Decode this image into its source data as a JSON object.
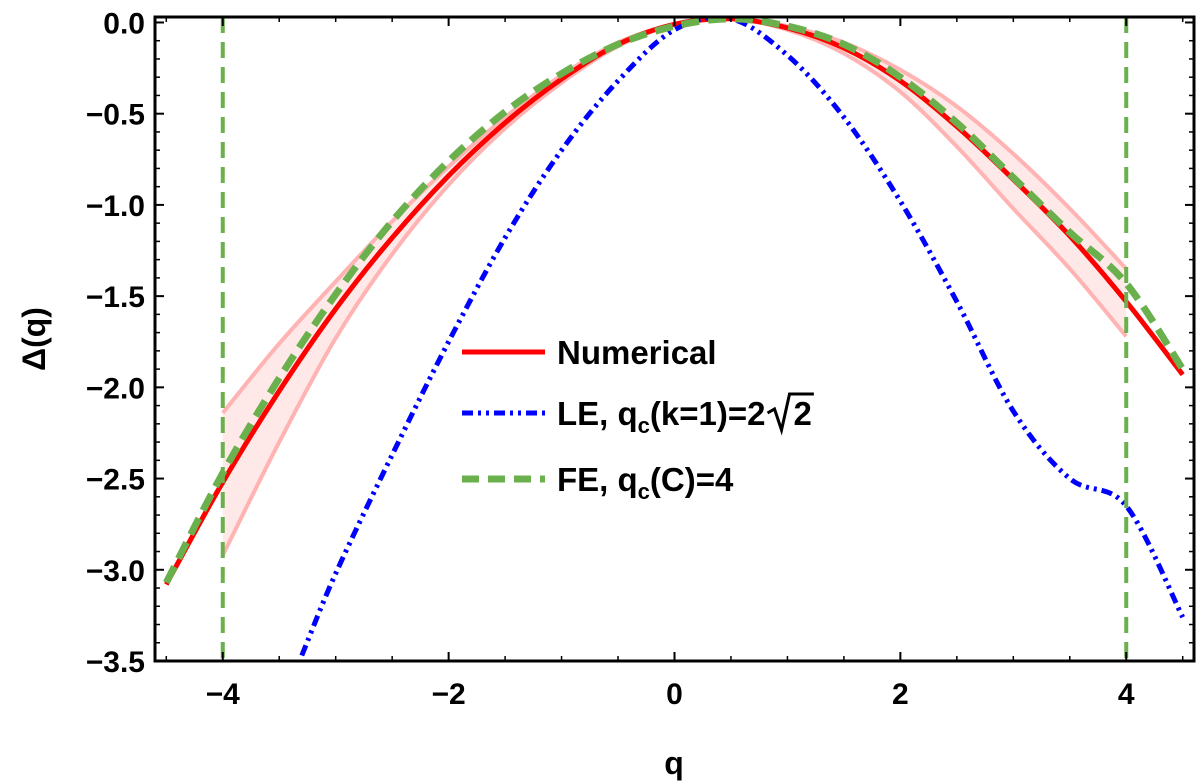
{
  "chart_data": {
    "type": "line",
    "title": "",
    "xlabel": "q",
    "ylabel": "Δ(q)",
    "xlim": [
      -4.6,
      4.6
    ],
    "ylim": [
      -3.5,
      0.03
    ],
    "x_ticks": [
      -4,
      -2,
      0,
      2,
      4
    ],
    "x_tick_labels": [
      "−4",
      "−2",
      "0",
      "2",
      "4"
    ],
    "y_ticks": [
      0.0,
      -0.5,
      -1.0,
      -1.5,
      -2.0,
      -2.5,
      -3.0,
      -3.5
    ],
    "y_tick_labels": [
      "0.0",
      "−0.5",
      "−1.0",
      "−1.5",
      "−2.0",
      "−2.5",
      "−3.0",
      "−3.5"
    ],
    "grid": false,
    "legend_position": "center",
    "vertical_lines": [
      {
        "x": -4,
        "color": "#6ab04c",
        "style": "dashed"
      },
      {
        "x": 4,
        "color": "#6ab04c",
        "style": "dashed"
      }
    ],
    "series": [
      {
        "name": "Numerical",
        "legend_label": "Numerical",
        "color": "#ff0000",
        "style": "solid",
        "x": [
          -4.5,
          -4.0,
          -3.5,
          -3.0,
          -2.5,
          -2.0,
          -1.5,
          -1.0,
          -0.5,
          0.0,
          0.5,
          1.0,
          1.5,
          2.0,
          2.5,
          3.0,
          3.5,
          4.0,
          4.5
        ],
        "y": [
          -3.08,
          -2.52,
          -2.02,
          -1.57,
          -1.18,
          -0.84,
          -0.55,
          -0.31,
          -0.12,
          -0.01,
          0.02,
          -0.03,
          -0.14,
          -0.32,
          -0.57,
          -0.86,
          -1.17,
          -1.53,
          -1.93
        ]
      },
      {
        "name": "LE",
        "legend_label": "LE, q",
        "legend_subscript": "c",
        "legend_suffix": "(k=1)=2",
        "legend_sqrt": "2",
        "color": "#0000ff",
        "style": "dash-dot-dot",
        "x": [
          -3.3,
          -3.0,
          -2.5,
          -2.0,
          -1.5,
          -1.0,
          -0.5,
          0.0,
          0.5,
          1.0,
          1.5,
          2.0,
          2.5,
          3.0,
          3.5,
          4.0,
          4.5
        ],
        "y": [
          -3.47,
          -3.02,
          -2.37,
          -1.75,
          -1.18,
          -0.7,
          -0.32,
          -0.04,
          0.02,
          -0.18,
          -0.52,
          -0.98,
          -1.53,
          -2.13,
          -2.5,
          -2.65,
          -3.26
        ]
      },
      {
        "name": "FE",
        "legend_label": "FE, q",
        "legend_subscript": "c",
        "legend_suffix": "(C)=4",
        "color": "#6ab04c",
        "style": "dashed",
        "x": [
          -4.5,
          -4.0,
          -3.5,
          -3.0,
          -2.5,
          -2.0,
          -1.5,
          -1.0,
          -0.5,
          0.0,
          0.5,
          1.0,
          1.5,
          2.0,
          2.5,
          3.0,
          3.5,
          4.0,
          4.5
        ],
        "y": [
          -3.07,
          -2.47,
          -1.95,
          -1.49,
          -1.09,
          -0.76,
          -0.49,
          -0.28,
          -0.12,
          -0.02,
          0.02,
          -0.02,
          -0.12,
          -0.3,
          -0.55,
          -0.85,
          -1.15,
          -1.43,
          -1.9
        ]
      }
    ],
    "uncertainty_band": {
      "series": "Numerical",
      "color": "#ffb3b3",
      "x": [
        -4.0,
        -3.5,
        -3.0,
        -2.5,
        -2.0,
        -1.5,
        -1.0,
        -0.5,
        0.0,
        0.5,
        1.0,
        1.5,
        2.0,
        2.5,
        3.0,
        3.5,
        4.0
      ],
      "upper": [
        -2.14,
        -1.76,
        -1.42,
        -1.09,
        -0.79,
        -0.52,
        -0.29,
        -0.11,
        -0.01,
        0.02,
        -0.02,
        -0.11,
        -0.26,
        -0.46,
        -0.72,
        -1.02,
        -1.35
      ],
      "lower": [
        -2.92,
        -2.3,
        -1.73,
        -1.27,
        -0.89,
        -0.58,
        -0.33,
        -0.13,
        -0.01,
        0.02,
        -0.04,
        -0.17,
        -0.38,
        -0.68,
        -1.02,
        -1.35,
        -1.72
      ]
    }
  }
}
